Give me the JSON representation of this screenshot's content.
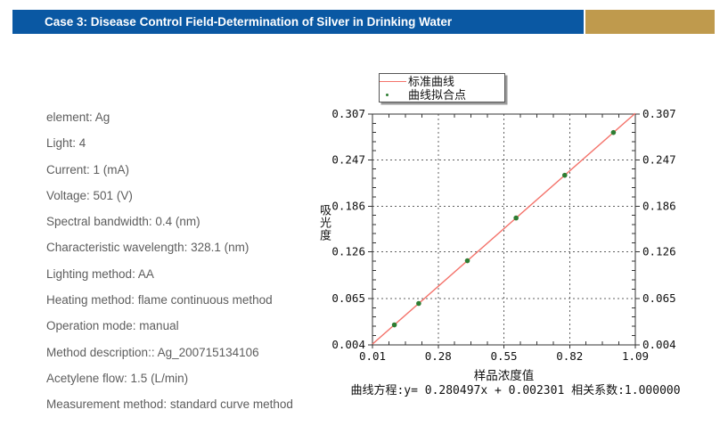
{
  "header": {
    "title": "Case 3: Disease Control Field-Determination of Silver in Drinking Water",
    "bar_color": "#0a58a3",
    "accent_color": "#bf9a4d"
  },
  "parameters": [
    "element: Ag",
    "Light: 4",
    "Current: 1 (mA)",
    "Voltage: 501 (V)",
    "Spectral bandwidth: 0.4 (nm)",
    "Characteristic wavelength: 328.1 (nm)",
    "Lighting method: AA",
    "Heating method: flame continuous method",
    "Operation mode: manual",
    "Method description:: Ag_200715134106",
    "Acetylene flow: 1.5 (L/min)",
    "Measurement method: standard curve method"
  ],
  "chart_data": {
    "type": "scatter",
    "title": "",
    "xlabel": "样品浓度值",
    "ylabel": "吸光度",
    "legend": [
      "标准曲线",
      "曲线拟合点"
    ],
    "legend_position": "top-center",
    "grid": true,
    "xlim": [
      0.01,
      1.09
    ],
    "ylim": [
      0.004,
      0.307
    ],
    "x_tick_values": [
      0.01,
      0.28,
      0.55,
      0.82,
      1.09
    ],
    "x_tick_labels": [
      "0.01",
      "0.28",
      "0.55",
      "0.82",
      "1.09"
    ],
    "y_tick_values": [
      0.004,
      0.065,
      0.126,
      0.186,
      0.247,
      0.307
    ],
    "y_tick_labels": [
      "0.004",
      "0.065",
      "0.126",
      "0.186",
      "0.247",
      "0.307"
    ],
    "minor_divisions": {
      "x": 4,
      "y": 5
    },
    "points_x": [
      0.1,
      0.2,
      0.4,
      0.6,
      0.8,
      1.0
    ],
    "points_y": [
      0.0303,
      0.0584,
      0.1145,
      0.1706,
      0.2267,
      0.2828
    ],
    "fit": {
      "slope": 0.280497,
      "intercept": 0.002301,
      "r": 1.0
    },
    "equation_text": "曲线方程:y= 0.280497x + 0.002301 相关系数:1.000000",
    "line_color": "#f4736b",
    "point_color": "#2e7d32",
    "axis_color": "#333333",
    "grid_color": "#606060",
    "tick_text_color": "#111111"
  }
}
